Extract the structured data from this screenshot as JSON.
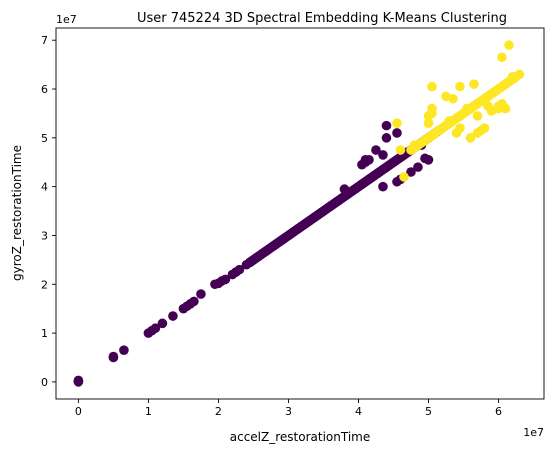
{
  "chart_data": {
    "type": "scatter",
    "title": "User 745224 3D Spectral Embedding K-Means Clustering",
    "xlabel": "accelZ_restorationTime",
    "ylabel": "gyroZ_restorationTime",
    "x_offset_label": "1e7",
    "y_offset_label": "1e7",
    "xlim": [
      -0.32,
      6.65
    ],
    "ylim": [
      -0.35,
      7.25
    ],
    "x_ticks": [
      0,
      1,
      2,
      3,
      4,
      5,
      6
    ],
    "y_ticks": [
      0,
      1,
      2,
      3,
      4,
      5,
      6,
      7
    ],
    "x_tick_labels": [
      "0",
      "1",
      "2",
      "3",
      "4",
      "5",
      "6"
    ],
    "y_tick_labels": [
      "0",
      "1",
      "2",
      "3",
      "4",
      "5",
      "6",
      "7"
    ],
    "grid": false,
    "legend": "none",
    "colors": {
      "cluster_0": "#440154",
      "cluster_1": "#fde725"
    },
    "series": [
      {
        "color": "#440154",
        "points": [
          [
            0.0,
            0.0
          ],
          [
            0.0,
            0.03
          ],
          [
            0.5,
            0.5
          ],
          [
            0.5,
            0.52
          ],
          [
            0.65,
            0.65
          ],
          [
            1.0,
            1.0
          ],
          [
            1.05,
            1.05
          ],
          [
            1.1,
            1.1
          ],
          [
            1.2,
            1.2
          ],
          [
            1.35,
            1.35
          ],
          [
            1.5,
            1.5
          ],
          [
            1.55,
            1.55
          ],
          [
            1.6,
            1.6
          ],
          [
            1.65,
            1.65
          ],
          [
            1.75,
            1.8
          ],
          [
            1.95,
            2.0
          ],
          [
            2.0,
            2.02
          ],
          [
            2.05,
            2.07
          ],
          [
            2.1,
            2.1
          ],
          [
            2.2,
            2.2
          ],
          [
            2.25,
            2.25
          ],
          [
            2.3,
            2.3
          ],
          [
            2.4,
            2.4
          ],
          [
            2.45,
            2.45
          ],
          [
            3.8,
            3.95
          ],
          [
            4.05,
            4.45
          ],
          [
            4.15,
            4.55
          ],
          [
            4.1,
            4.55
          ],
          [
            4.1,
            4.5
          ],
          [
            4.25,
            4.75
          ],
          [
            4.35,
            4.65
          ],
          [
            4.4,
            5.0
          ],
          [
            4.4,
            5.25
          ],
          [
            4.35,
            4.0
          ],
          [
            4.55,
            5.1
          ],
          [
            4.55,
            4.1
          ],
          [
            4.6,
            4.15
          ],
          [
            4.75,
            4.3
          ],
          [
            4.85,
            4.4
          ],
          [
            4.95,
            4.58
          ],
          [
            5.0,
            4.55
          ],
          [
            4.75,
            4.75
          ],
          [
            4.9,
            4.85
          ],
          [
            4.65,
            4.7
          ],
          [
            0.0,
            0.01
          ]
        ],
        "segments": [
          [
            2.45,
            2.45,
            5.15,
            5.15
          ]
        ]
      },
      {
        "color": "#fde725",
        "points": [
          [
            4.55,
            5.3
          ],
          [
            4.6,
            4.75
          ],
          [
            4.65,
            4.2
          ],
          [
            4.8,
            4.85
          ],
          [
            5.0,
            5.3
          ],
          [
            5.05,
            5.6
          ],
          [
            5.05,
            5.5
          ],
          [
            5.0,
            5.45
          ],
          [
            5.05,
            6.05
          ],
          [
            5.25,
            5.85
          ],
          [
            5.35,
            5.8
          ],
          [
            5.45,
            6.05
          ],
          [
            5.45,
            5.2
          ],
          [
            5.4,
            5.1
          ],
          [
            5.55,
            5.6
          ],
          [
            5.6,
            5.0
          ],
          [
            5.7,
            5.1
          ],
          [
            5.75,
            5.15
          ],
          [
            5.8,
            5.2
          ],
          [
            5.3,
            5.35
          ],
          [
            5.65,
            6.1
          ],
          [
            5.85,
            5.65
          ],
          [
            6.05,
            5.7
          ],
          [
            6.0,
            5.6
          ],
          [
            6.0,
            5.65
          ],
          [
            6.1,
            5.6
          ],
          [
            6.05,
            6.65
          ],
          [
            6.15,
            6.9
          ],
          [
            6.2,
            6.25
          ],
          [
            6.3,
            6.3
          ],
          [
            5.7,
            5.45
          ],
          [
            5.9,
            5.55
          ]
        ],
        "segments": [
          [
            4.75,
            4.75,
            6.25,
            6.25
          ]
        ]
      }
    ]
  }
}
